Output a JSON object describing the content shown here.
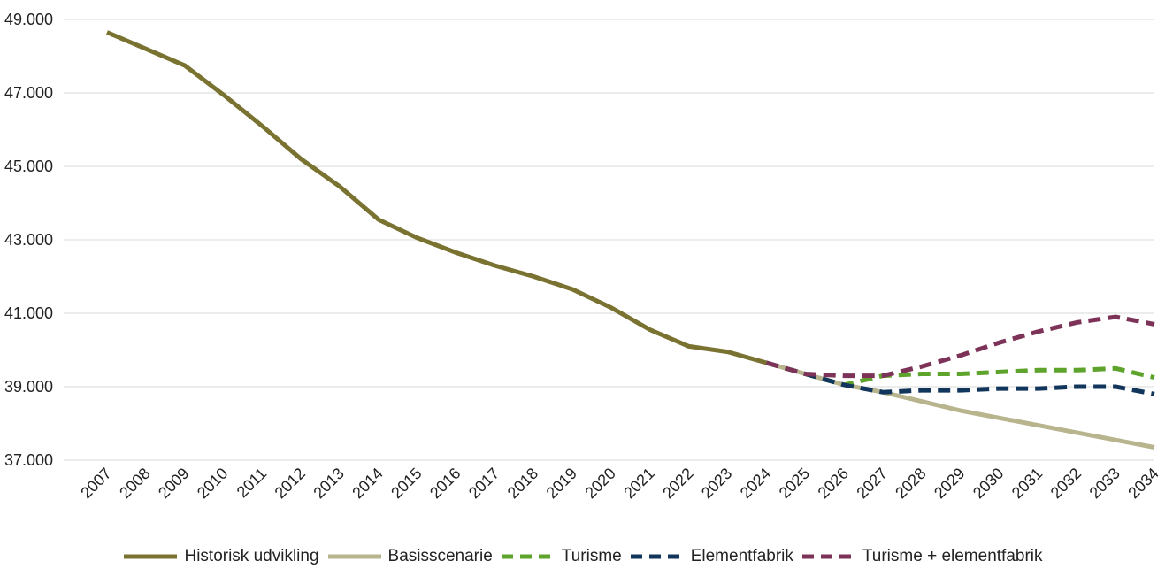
{
  "chart_data": {
    "type": "line",
    "title": "",
    "xlabel": "",
    "ylabel": "",
    "ylim": [
      37000,
      49000
    ],
    "yticks": [
      37000,
      39000,
      41000,
      43000,
      45000,
      47000,
      49000
    ],
    "ytick_labels": [
      "37.000",
      "39.000",
      "41.000",
      "43.000",
      "45.000",
      "47.000",
      "49.000"
    ],
    "grid": "horizontal",
    "legend_position": "bottom",
    "categories": [
      "2007",
      "2008",
      "2009",
      "2010",
      "2011",
      "2012",
      "2013",
      "2014",
      "2015",
      "2016",
      "2017",
      "2018",
      "2019",
      "2020",
      "2021",
      "2022",
      "2023",
      "2024",
      "2025",
      "2026",
      "2027",
      "2028",
      "2029",
      "2030",
      "2031",
      "2032",
      "2033",
      "2034"
    ],
    "series": [
      {
        "name": "Historisk udvikling",
        "color": "#7a7230",
        "dashed": false,
        "values": [
          48650,
          48200,
          47750,
          46950,
          46100,
          45200,
          44450,
          43550,
          43050,
          42650,
          42300,
          42000,
          41650,
          41150,
          40550,
          40100,
          39950,
          39650,
          null,
          null,
          null,
          null,
          null,
          null,
          null,
          null,
          null,
          null
        ]
      },
      {
        "name": "Basisscenarie",
        "color": "#b7b48e",
        "dashed": false,
        "values": [
          null,
          null,
          null,
          null,
          null,
          null,
          null,
          null,
          null,
          null,
          null,
          null,
          null,
          null,
          null,
          null,
          null,
          39650,
          39350,
          39050,
          38850,
          38600,
          38350,
          38150,
          37950,
          37750,
          37550,
          37350
        ]
      },
      {
        "name": "Turisme",
        "color": "#5ea42c",
        "dashed": true,
        "values": [
          null,
          null,
          null,
          null,
          null,
          null,
          null,
          null,
          null,
          null,
          null,
          null,
          null,
          null,
          null,
          null,
          null,
          39650,
          39350,
          39050,
          38850,
          38900,
          38900,
          38950,
          38950,
          39000,
          39000,
          38800
        ]
      },
      {
        "name": "Elementfabrik",
        "color": "#12355b",
        "dashed": true,
        "values": [
          null,
          null,
          null,
          null,
          null,
          null,
          null,
          null,
          null,
          null,
          null,
          null,
          null,
          null,
          null,
          null,
          null,
          39650,
          39350,
          39050,
          38850,
          38900,
          38900,
          38950,
          38950,
          39000,
          39000,
          38800
        ]
      },
      {
        "name": "Turisme + elementfabrik",
        "color": "#7d3358",
        "dashed": true,
        "values": [
          null,
          null,
          null,
          null,
          null,
          null,
          null,
          null,
          null,
          null,
          null,
          null,
          null,
          null,
          null,
          null,
          null,
          39650,
          39350,
          39300,
          39300,
          39550,
          39850,
          40200,
          40500,
          40750,
          40900,
          40700
        ]
      }
    ],
    "overrides": {
      "Turisme": [
        null,
        null,
        null,
        null,
        null,
        null,
        null,
        null,
        null,
        null,
        null,
        null,
        null,
        null,
        null,
        null,
        null,
        null,
        null,
        null,
        39300,
        39350,
        39350,
        39400,
        39450,
        39450,
        39500,
        39250
      ]
    }
  }
}
